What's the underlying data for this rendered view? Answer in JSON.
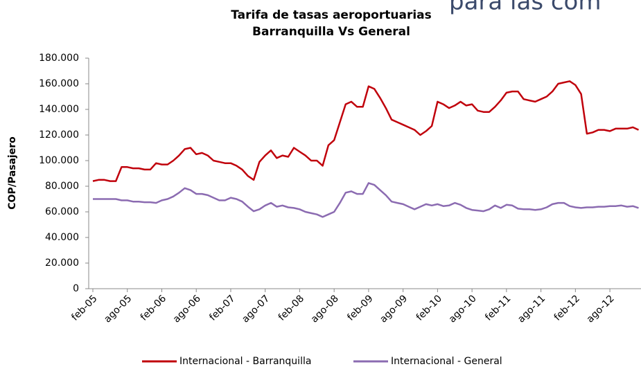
{
  "background_text": "para las com",
  "chart_data": {
    "type": "line",
    "title": "Tarifa de tasas aeroportuarias",
    "subtitle": "Barranquilla Vs General",
    "y_label": "COP/Pasajero",
    "categories": [
      "feb-05",
      null,
      null,
      null,
      null,
      null,
      "ago-05",
      null,
      null,
      null,
      null,
      null,
      "feb-06",
      null,
      null,
      null,
      null,
      null,
      "ago-06",
      null,
      null,
      null,
      null,
      null,
      "feb-07",
      null,
      null,
      null,
      null,
      null,
      "ago-07",
      null,
      null,
      null,
      null,
      null,
      "feb-08",
      null,
      null,
      null,
      null,
      null,
      "ago-08",
      null,
      null,
      null,
      null,
      null,
      "feb-09",
      null,
      null,
      null,
      null,
      null,
      "ago-09",
      null,
      null,
      null,
      null,
      null,
      "feb-10",
      null,
      null,
      null,
      null,
      null,
      "ago-10",
      null,
      null,
      null,
      null,
      null,
      "feb-11",
      null,
      null,
      null,
      null,
      null,
      "ago-11",
      null,
      null,
      null,
      null,
      null,
      "feb-12",
      null,
      null,
      null,
      null,
      null,
      "ago-12",
      null,
      null,
      null,
      null,
      null
    ],
    "series": [
      {
        "name": "Internacional - Barranquilla",
        "color": "#c0000b",
        "values": [
          84000,
          85000,
          85000,
          84000,
          84000,
          95000,
          95000,
          94000,
          94000,
          93000,
          93000,
          98000,
          97000,
          97000,
          100000,
          104000,
          109000,
          110000,
          105000,
          106000,
          104000,
          100000,
          99000,
          98000,
          98000,
          96000,
          93000,
          88000,
          85000,
          99000,
          104000,
          108000,
          102000,
          104000,
          103000,
          110000,
          107000,
          104000,
          100000,
          100000,
          96000,
          112000,
          116000,
          130000,
          144000,
          146000,
          142000,
          142000,
          158000,
          156000,
          149000,
          141000,
          132000,
          130000,
          128000,
          126000,
          124000,
          120000,
          123000,
          127000,
          146000,
          144000,
          141000,
          143000,
          146000,
          143000,
          144000,
          139000,
          138000,
          138000,
          142000,
          147000,
          153000,
          154000,
          154000,
          148000,
          147000,
          146000,
          148000,
          150000,
          154000,
          160000,
          161000,
          162000,
          159000,
          152000,
          121000,
          122000,
          124000,
          124000,
          123000,
          125000,
          125000,
          125000,
          126000,
          124000
        ]
      },
      {
        "name": "Internacional - General",
        "color": "#8b6bb1",
        "values": [
          70000,
          70000,
          70000,
          70000,
          70000,
          69000,
          69000,
          68000,
          68000,
          67500,
          67500,
          67000,
          69000,
          70000,
          72000,
          75000,
          78500,
          77000,
          74000,
          74000,
          73000,
          71000,
          69000,
          69000,
          71000,
          70000,
          68000,
          64000,
          60500,
          62000,
          65000,
          67000,
          64000,
          65000,
          63500,
          63000,
          62000,
          60000,
          59000,
          58000,
          56000,
          58000,
          60000,
          67000,
          75000,
          76000,
          74000,
          74000,
          82500,
          81000,
          77000,
          73000,
          68000,
          67000,
          66000,
          64000,
          62000,
          64000,
          66000,
          65000,
          66000,
          64500,
          65000,
          67000,
          65500,
          63000,
          61500,
          61000,
          60500,
          62000,
          65000,
          63000,
          65500,
          65000,
          62500,
          62000,
          62000,
          61500,
          62000,
          63500,
          66000,
          67000,
          67000,
          64500,
          63500,
          63000,
          63500,
          63500,
          64000,
          64000,
          64500,
          64500,
          65000,
          64000,
          64500,
          63000
        ]
      }
    ],
    "ylim": [
      0,
      180000
    ],
    "yticks": [
      0,
      {
        "value": 20000,
        "label": "20.000"
      },
      {
        "value": 40000,
        "label": "40.000"
      },
      {
        "value": 60000,
        "label": "60.000"
      },
      {
        "value": 80000,
        "label": "80.000"
      },
      {
        "value": 100000,
        "label": "100.000"
      },
      {
        "value": 120000,
        "label": "120.000"
      },
      {
        "value": 140000,
        "label": "140.000"
      },
      {
        "value": 160000,
        "label": "160.000"
      },
      {
        "value": 180000,
        "label": "180.000"
      }
    ],
    "legend": "bottom"
  }
}
